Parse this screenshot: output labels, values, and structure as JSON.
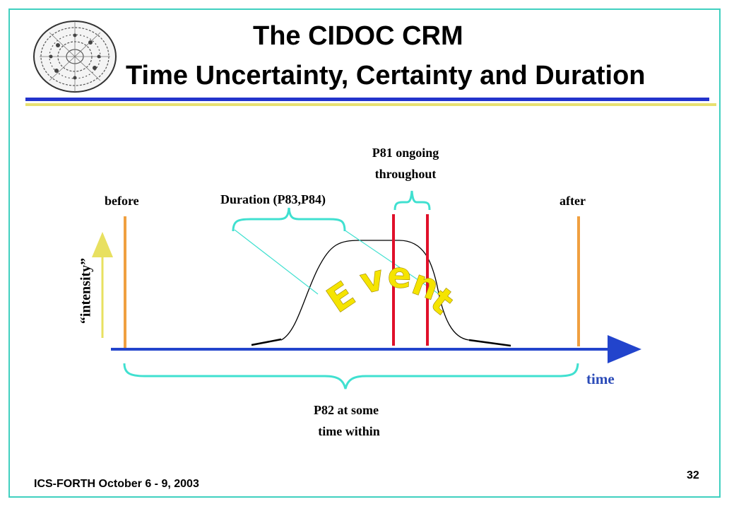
{
  "title": {
    "line1": "The CIDOC CRM",
    "line2": "Time Uncertainty, Certainty and Duration"
  },
  "labels": {
    "before": "before",
    "after": "after",
    "duration": "Duration (P83,P84)",
    "p81_line1": "P81 ongoing",
    "p81_line2": "throughout",
    "p82_line1": "P82 at some",
    "p82_line2": "time within",
    "time": "time",
    "intensity": "“intensity”",
    "event": "Event"
  },
  "footer": {
    "text": "ICS-FORTH October 6 - 9, 2003",
    "page_number": "32"
  },
  "colors": {
    "frame": "#40d0c0",
    "title_rule_blue": "#2233cc",
    "title_rule_yellow": "#e8e070",
    "time_axis": "#2244cc",
    "brace": "#40e0d0",
    "before_after_lines": "#f0a040",
    "ongoing_lines": "#e0102a",
    "intensity_arrow": "#e8e060",
    "event_text": "#f5e400"
  }
}
